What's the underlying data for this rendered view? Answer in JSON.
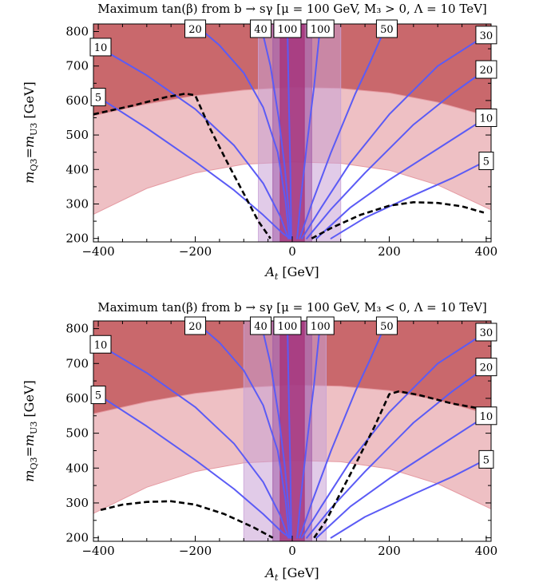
{
  "colors": {
    "band_dark": "#c9686c",
    "band_light": "#eec0c4",
    "band_light_edge": "#e59aa2",
    "vband_outer": "#c8a1d6",
    "vband_inner": "#a05aa6",
    "vband_core": "#a63078",
    "contour": "#5b5bf5",
    "dashed": "#000000",
    "label_box": "#ffffff"
  },
  "chart_data": [
    {
      "type": "contour",
      "title": "Maximum tan(β) from b → sγ [μ = 100 GeV, M₃ > 0, Λ = 10 TeV]",
      "xlabel": "A_t [GeV]",
      "ylabel": "m_Q3=m_U3 [GeV]",
      "xlim": [
        -410,
        410
      ],
      "ylim": [
        190,
        822
      ],
      "xticks": [
        -400,
        -200,
        0,
        200,
        400
      ],
      "yticks": [
        200,
        300,
        400,
        500,
        600,
        700,
        800
      ],
      "xtick_labels": [
        "−400",
        "−200",
        "0",
        "200",
        "400"
      ],
      "ytick_labels": [
        "200",
        "300",
        "400",
        "500",
        "600",
        "700",
        "800"
      ],
      "horizontal_bands": {
        "dark_lower": [
          [
            -410,
            556
          ],
          [
            -300,
            590
          ],
          [
            -200,
            614
          ],
          [
            -100,
            630
          ],
          [
            0,
            638
          ],
          [
            100,
            635
          ],
          [
            200,
            622
          ],
          [
            300,
            595
          ],
          [
            410,
            552
          ]
        ],
        "light_lower": [
          [
            -410,
            270
          ],
          [
            -300,
            345
          ],
          [
            -200,
            390
          ],
          [
            -100,
            415
          ],
          [
            0,
            422
          ],
          [
            100,
            418
          ],
          [
            200,
            398
          ],
          [
            300,
            355
          ],
          [
            410,
            283
          ]
        ]
      },
      "vertical_bands": [
        {
          "name": "outer",
          "x": [
            -70,
            100
          ]
        },
        {
          "name": "inner",
          "x": [
            -40,
            40
          ]
        },
        {
          "name": "core",
          "x": [
            -25,
            25
          ]
        }
      ],
      "contours": [
        {
          "label": "5",
          "side": "left",
          "points": [
            [
              -400,
              610
            ],
            [
              -300,
              520
            ],
            [
              -200,
              423
            ],
            [
              -120,
              340
            ],
            [
              -60,
              268
            ],
            [
              -20,
              215
            ],
            [
              -5,
              200
            ]
          ]
        },
        {
          "label": "10",
          "side": "left",
          "points": [
            [
              -400,
              755
            ],
            [
              -300,
              673
            ],
            [
              -200,
              575
            ],
            [
              -120,
              470
            ],
            [
              -60,
              360
            ],
            [
              -25,
              265
            ],
            [
              -8,
              200
            ]
          ]
        },
        {
          "label": "20",
          "side": "left",
          "points": [
            [
              -200,
              820
            ],
            [
              -150,
              760
            ],
            [
              -100,
              680
            ],
            [
              -60,
              580
            ],
            [
              -30,
              450
            ],
            [
              -14,
              310
            ],
            [
              -6,
              200
            ]
          ]
        },
        {
          "label": "40",
          "side": "left",
          "points": [
            [
              -65,
              820
            ],
            [
              -45,
              700
            ],
            [
              -28,
              550
            ],
            [
              -15,
              400
            ],
            [
              -6,
              260
            ],
            [
              -3,
              200
            ]
          ]
        },
        {
          "label": "100",
          "side": "left",
          "points": [
            [
              -10,
              820
            ],
            [
              -7,
              600
            ],
            [
              -4,
              400
            ],
            [
              -2,
              200
            ]
          ]
        },
        {
          "label": "100",
          "side": "right",
          "points": [
            [
              10,
              200
            ],
            [
              18,
              320
            ],
            [
              30,
              470
            ],
            [
              45,
              640
            ],
            [
              58,
              820
            ]
          ]
        },
        {
          "label": "50",
          "side": "right",
          "points": [
            [
              15,
              200
            ],
            [
              40,
              300
            ],
            [
              80,
              450
            ],
            [
              130,
              620
            ],
            [
              160,
              710
            ],
            [
              195,
              820
            ]
          ]
        },
        {
          "label": "30",
          "side": "right",
          "points": [
            [
              20,
              200
            ],
            [
              60,
              290
            ],
            [
              120,
              420
            ],
            [
              200,
              560
            ],
            [
              300,
              700
            ],
            [
              400,
              790
            ]
          ]
        },
        {
          "label": "20",
          "side": "right",
          "points": [
            [
              30,
              200
            ],
            [
              80,
              285
            ],
            [
              150,
              390
            ],
            [
              250,
              530
            ],
            [
              330,
              620
            ],
            [
              400,
              690
            ]
          ]
        },
        {
          "label": "10",
          "side": "right",
          "points": [
            [
              50,
              200
            ],
            [
              120,
              290
            ],
            [
              200,
              370
            ],
            [
              300,
              460
            ],
            [
              400,
              550
            ]
          ]
        },
        {
          "label": "5",
          "side": "right",
          "points": [
            [
              80,
              200
            ],
            [
              150,
              260
            ],
            [
              250,
              325
            ],
            [
              330,
              375
            ],
            [
              400,
              425
            ]
          ]
        }
      ],
      "dashed_lines": [
        [
          [
            -410,
            560
          ],
          [
            -330,
            585
          ],
          [
            -260,
            610
          ],
          [
            -220,
            620
          ],
          [
            -200,
            615
          ],
          [
            -170,
            520
          ],
          [
            -130,
            410
          ],
          [
            -100,
            330
          ],
          [
            -70,
            250
          ],
          [
            -45,
            200
          ]
        ],
        [
          [
            40,
            200
          ],
          [
            80,
            230
          ],
          [
            140,
            268
          ],
          [
            200,
            295
          ],
          [
            250,
            305
          ],
          [
            300,
            303
          ],
          [
            350,
            293
          ],
          [
            395,
            275
          ]
        ]
      ]
    },
    {
      "type": "contour",
      "title": "Maximum tan(β) from b → sγ [μ = 100 GeV, M₃ < 0, Λ = 10 TeV]",
      "xlabel": "A_t [GeV]",
      "ylabel": "m_Q3=m_U3 [GeV]",
      "xlim": [
        -410,
        410
      ],
      "ylim": [
        190,
        822
      ],
      "xticks": [
        -400,
        -200,
        0,
        200,
        400
      ],
      "yticks": [
        200,
        300,
        400,
        500,
        600,
        700,
        800
      ],
      "xtick_labels": [
        "−400",
        "−200",
        "0",
        "200",
        "400"
      ],
      "ytick_labels": [
        "200",
        "300",
        "400",
        "500",
        "600",
        "700",
        "800"
      ],
      "horizontal_bands": {
        "dark_lower": [
          [
            -410,
            556
          ],
          [
            -300,
            590
          ],
          [
            -200,
            614
          ],
          [
            -100,
            630
          ],
          [
            0,
            638
          ],
          [
            100,
            635
          ],
          [
            200,
            622
          ],
          [
            300,
            595
          ],
          [
            410,
            552
          ]
        ],
        "light_lower": [
          [
            -410,
            270
          ],
          [
            -300,
            345
          ],
          [
            -200,
            390
          ],
          [
            -100,
            415
          ],
          [
            0,
            422
          ],
          [
            100,
            418
          ],
          [
            200,
            398
          ],
          [
            300,
            355
          ],
          [
            410,
            283
          ]
        ]
      },
      "vertical_bands": [
        {
          "name": "outer",
          "x": [
            -100,
            70
          ]
        },
        {
          "name": "inner",
          "x": [
            -40,
            40
          ]
        },
        {
          "name": "core",
          "x": [
            -25,
            25
          ]
        }
      ],
      "contours": [
        {
          "label": "5",
          "side": "left",
          "points": [
            [
              -400,
              610
            ],
            [
              -300,
              520
            ],
            [
              -200,
              423
            ],
            [
              -120,
              340
            ],
            [
              -60,
              268
            ],
            [
              -20,
              215
            ],
            [
              -5,
              200
            ]
          ]
        },
        {
          "label": "10",
          "side": "left",
          "points": [
            [
              -400,
              755
            ],
            [
              -300,
              673
            ],
            [
              -200,
              575
            ],
            [
              -120,
              470
            ],
            [
              -60,
              360
            ],
            [
              -25,
              265
            ],
            [
              -8,
              200
            ]
          ]
        },
        {
          "label": "20",
          "side": "left",
          "points": [
            [
              -200,
              820
            ],
            [
              -150,
              760
            ],
            [
              -100,
              680
            ],
            [
              -60,
              580
            ],
            [
              -30,
              450
            ],
            [
              -14,
              310
            ],
            [
              -6,
              200
            ]
          ]
        },
        {
          "label": "40",
          "side": "left",
          "points": [
            [
              -65,
              820
            ],
            [
              -45,
              700
            ],
            [
              -28,
              550
            ],
            [
              -15,
              400
            ],
            [
              -6,
              260
            ],
            [
              -3,
              200
            ]
          ]
        },
        {
          "label": "100",
          "side": "left",
          "points": [
            [
              -10,
              820
            ],
            [
              -7,
              600
            ],
            [
              -4,
              400
            ],
            [
              -2,
              200
            ]
          ]
        },
        {
          "label": "100",
          "side": "right",
          "points": [
            [
              10,
              200
            ],
            [
              18,
              320
            ],
            [
              30,
              470
            ],
            [
              45,
              640
            ],
            [
              58,
              820
            ]
          ]
        },
        {
          "label": "50",
          "side": "right",
          "points": [
            [
              15,
              200
            ],
            [
              40,
              300
            ],
            [
              80,
              450
            ],
            [
              130,
              620
            ],
            [
              160,
              710
            ],
            [
              195,
              820
            ]
          ]
        },
        {
          "label": "30",
          "side": "right",
          "points": [
            [
              20,
              200
            ],
            [
              60,
              290
            ],
            [
              120,
              420
            ],
            [
              200,
              560
            ],
            [
              300,
              700
            ],
            [
              400,
              790
            ]
          ]
        },
        {
          "label": "20",
          "side": "right",
          "points": [
            [
              30,
              200
            ],
            [
              80,
              285
            ],
            [
              150,
              390
            ],
            [
              250,
              530
            ],
            [
              330,
              620
            ],
            [
              400,
              690
            ]
          ]
        },
        {
          "label": "10",
          "side": "right",
          "points": [
            [
              50,
              200
            ],
            [
              120,
              290
            ],
            [
              200,
              370
            ],
            [
              300,
              460
            ],
            [
              400,
              550
            ]
          ]
        },
        {
          "label": "5",
          "side": "right",
          "points": [
            [
              80,
              200
            ],
            [
              150,
              260
            ],
            [
              250,
              325
            ],
            [
              330,
              375
            ],
            [
              400,
              425
            ]
          ]
        }
      ],
      "dashed_lines": [
        [
          [
            -395,
            280
          ],
          [
            -350,
            295
          ],
          [
            -300,
            303
          ],
          [
            -250,
            305
          ],
          [
            -200,
            295
          ],
          [
            -140,
            268
          ],
          [
            -80,
            230
          ],
          [
            -40,
            200
          ]
        ],
        [
          [
            45,
            200
          ],
          [
            70,
            250
          ],
          [
            100,
            330
          ],
          [
            130,
            410
          ],
          [
            170,
            520
          ],
          [
            200,
            612
          ],
          [
            220,
            620
          ],
          [
            260,
            610
          ],
          [
            330,
            585
          ],
          [
            410,
            565
          ]
        ]
      ]
    }
  ]
}
